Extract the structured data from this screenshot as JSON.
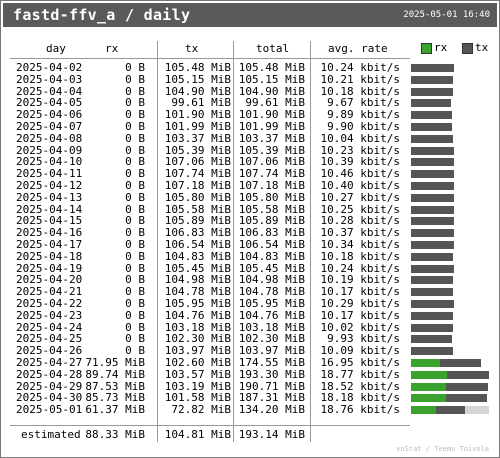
{
  "header": {
    "title": "fastd-ffv_a / daily",
    "timestamp": "2025-05-01 16:40"
  },
  "columns": {
    "day": "day",
    "rx": "rx",
    "tx": "tx",
    "total": "total",
    "rate": "avg. rate"
  },
  "legend": {
    "rx": "rx",
    "tx": "tx",
    "rx_color": "#3ca22e",
    "tx_color": "#555555"
  },
  "rows": [
    {
      "day": "2025-04-02",
      "rx": "0 B",
      "tx": "105.48 MiB",
      "total": "105.48 MiB",
      "rate": "10.24 kbit/s",
      "bar_rx": 0,
      "bar_tx": 0.5455,
      "bar_rest": 0
    },
    {
      "day": "2025-04-03",
      "rx": "0 B",
      "tx": "105.15 MiB",
      "total": "105.15 MiB",
      "rate": "10.21 kbit/s",
      "bar_rx": 0,
      "bar_tx": 0.5439,
      "bar_rest": 0
    },
    {
      "day": "2025-04-04",
      "rx": "0 B",
      "tx": "104.90 MiB",
      "total": "104.90 MiB",
      "rate": "10.18 kbit/s",
      "bar_rx": 0,
      "bar_tx": 0.5426,
      "bar_rest": 0
    },
    {
      "day": "2025-04-05",
      "rx": "0 B",
      "tx": "99.61 MiB",
      "total": "99.61 MiB",
      "rate": "9.67 kbit/s",
      "bar_rx": 0,
      "bar_tx": 0.5152,
      "bar_rest": 0
    },
    {
      "day": "2025-04-06",
      "rx": "0 B",
      "tx": "101.90 MiB",
      "total": "101.90 MiB",
      "rate": "9.89 kbit/s",
      "bar_rx": 0,
      "bar_tx": 0.527,
      "bar_rest": 0
    },
    {
      "day": "2025-04-07",
      "rx": "0 B",
      "tx": "101.99 MiB",
      "total": "101.99 MiB",
      "rate": "9.90 kbit/s",
      "bar_rx": 0,
      "bar_tx": 0.5275,
      "bar_rest": 0
    },
    {
      "day": "2025-04-08",
      "rx": "0 B",
      "tx": "103.37 MiB",
      "total": "103.37 MiB",
      "rate": "10.04 kbit/s",
      "bar_rx": 0,
      "bar_tx": 0.5347,
      "bar_rest": 0
    },
    {
      "day": "2025-04-09",
      "rx": "0 B",
      "tx": "105.39 MiB",
      "total": "105.39 MiB",
      "rate": "10.23 kbit/s",
      "bar_rx": 0,
      "bar_tx": 0.5451,
      "bar_rest": 0
    },
    {
      "day": "2025-04-10",
      "rx": "0 B",
      "tx": "107.06 MiB",
      "total": "107.06 MiB",
      "rate": "10.39 kbit/s",
      "bar_rx": 0,
      "bar_tx": 0.5538,
      "bar_rest": 0
    },
    {
      "day": "2025-04-11",
      "rx": "0 B",
      "tx": "107.74 MiB",
      "total": "107.74 MiB",
      "rate": "10.46 kbit/s",
      "bar_rx": 0,
      "bar_tx": 0.5573,
      "bar_rest": 0
    },
    {
      "day": "2025-04-12",
      "rx": "0 B",
      "tx": "107.18 MiB",
      "total": "107.18 MiB",
      "rate": "10.40 kbit/s",
      "bar_rx": 0,
      "bar_tx": 0.5544,
      "bar_rest": 0
    },
    {
      "day": "2025-04-13",
      "rx": "0 B",
      "tx": "105.80 MiB",
      "total": "105.80 MiB",
      "rate": "10.27 kbit/s",
      "bar_rx": 0,
      "bar_tx": 0.5472,
      "bar_rest": 0
    },
    {
      "day": "2025-04-14",
      "rx": "0 B",
      "tx": "105.58 MiB",
      "total": "105.58 MiB",
      "rate": "10.25 kbit/s",
      "bar_rx": 0,
      "bar_tx": 0.5461,
      "bar_rest": 0
    },
    {
      "day": "2025-04-15",
      "rx": "0 B",
      "tx": "105.89 MiB",
      "total": "105.89 MiB",
      "rate": "10.28 kbit/s",
      "bar_rx": 0,
      "bar_tx": 0.5477,
      "bar_rest": 0
    },
    {
      "day": "2025-04-16",
      "rx": "0 B",
      "tx": "106.83 MiB",
      "total": "106.83 MiB",
      "rate": "10.37 kbit/s",
      "bar_rx": 0,
      "bar_tx": 0.5526,
      "bar_rest": 0
    },
    {
      "day": "2025-04-17",
      "rx": "0 B",
      "tx": "106.54 MiB",
      "total": "106.54 MiB",
      "rate": "10.34 kbit/s",
      "bar_rx": 0,
      "bar_tx": 0.5511,
      "bar_rest": 0
    },
    {
      "day": "2025-04-18",
      "rx": "0 B",
      "tx": "104.83 MiB",
      "total": "104.83 MiB",
      "rate": "10.18 kbit/s",
      "bar_rx": 0,
      "bar_tx": 0.5422,
      "bar_rest": 0
    },
    {
      "day": "2025-04-19",
      "rx": "0 B",
      "tx": "105.45 MiB",
      "total": "105.45 MiB",
      "rate": "10.24 kbit/s",
      "bar_rx": 0,
      "bar_tx": 0.5454,
      "bar_rest": 0
    },
    {
      "day": "2025-04-20",
      "rx": "0 B",
      "tx": "104.98 MiB",
      "total": "104.98 MiB",
      "rate": "10.19 kbit/s",
      "bar_rx": 0,
      "bar_tx": 0.543,
      "bar_rest": 0
    },
    {
      "day": "2025-04-21",
      "rx": "0 B",
      "tx": "104.78 MiB",
      "total": "104.78 MiB",
      "rate": "10.17 kbit/s",
      "bar_rx": 0,
      "bar_tx": 0.542,
      "bar_rest": 0
    },
    {
      "day": "2025-04-22",
      "rx": "0 B",
      "tx": "105.95 MiB",
      "total": "105.95 MiB",
      "rate": "10.29 kbit/s",
      "bar_rx": 0,
      "bar_tx": 0.548,
      "bar_rest": 0
    },
    {
      "day": "2025-04-23",
      "rx": "0 B",
      "tx": "104.76 MiB",
      "total": "104.76 MiB",
      "rate": "10.17 kbit/s",
      "bar_rx": 0,
      "bar_tx": 0.5419,
      "bar_rest": 0
    },
    {
      "day": "2025-04-24",
      "rx": "0 B",
      "tx": "103.18 MiB",
      "total": "103.18 MiB",
      "rate": "10.02 kbit/s",
      "bar_rx": 0,
      "bar_tx": 0.5337,
      "bar_rest": 0
    },
    {
      "day": "2025-04-25",
      "rx": "0 B",
      "tx": "102.30 MiB",
      "total": "102.30 MiB",
      "rate": "9.93 kbit/s",
      "bar_rx": 0,
      "bar_tx": 0.5291,
      "bar_rest": 0
    },
    {
      "day": "2025-04-26",
      "rx": "0 B",
      "tx": "103.97 MiB",
      "total": "103.97 MiB",
      "rate": "10.09 kbit/s",
      "bar_rx": 0,
      "bar_tx": 0.5378,
      "bar_rest": 0
    },
    {
      "day": "2025-04-27",
      "rx": "71.95 MiB",
      "tx": "102.60 MiB",
      "total": "174.55 MiB",
      "rate": "16.95 kbit/s",
      "bar_rx": 0.3721,
      "bar_tx": 0.5307,
      "bar_rest": 0
    },
    {
      "day": "2025-04-28",
      "rx": "89.74 MiB",
      "tx": "103.57 MiB",
      "total": "193.30 MiB",
      "rate": "18.77 kbit/s",
      "bar_rx": 0.4642,
      "bar_tx": 0.5358,
      "bar_rest": 0
    },
    {
      "day": "2025-04-29",
      "rx": "87.53 MiB",
      "tx": "103.19 MiB",
      "total": "190.71 MiB",
      "rate": "18.52 kbit/s",
      "bar_rx": 0.4527,
      "bar_tx": 0.5337,
      "bar_rest": 0
    },
    {
      "day": "2025-04-30",
      "rx": "85.73 MiB",
      "tx": "101.58 MiB",
      "total": "187.31 MiB",
      "rate": "18.18 kbit/s",
      "bar_rx": 0.4434,
      "bar_tx": 0.5254,
      "bar_rest": 0
    },
    {
      "day": "2025-05-01",
      "rx": "61.37 MiB",
      "tx": "72.82 MiB",
      "total": "134.20 MiB",
      "rate": "18.76 kbit/s",
      "bar_rx": 0.3174,
      "bar_tx": 0.3766,
      "bar_rest": 0.306
    }
  ],
  "estimated": {
    "label": "estimated",
    "rx": "88.33 MiB",
    "tx": "104.81 MiB",
    "total": "193.14 MiB"
  },
  "footer": "vnStat / Teemu Toivola"
}
